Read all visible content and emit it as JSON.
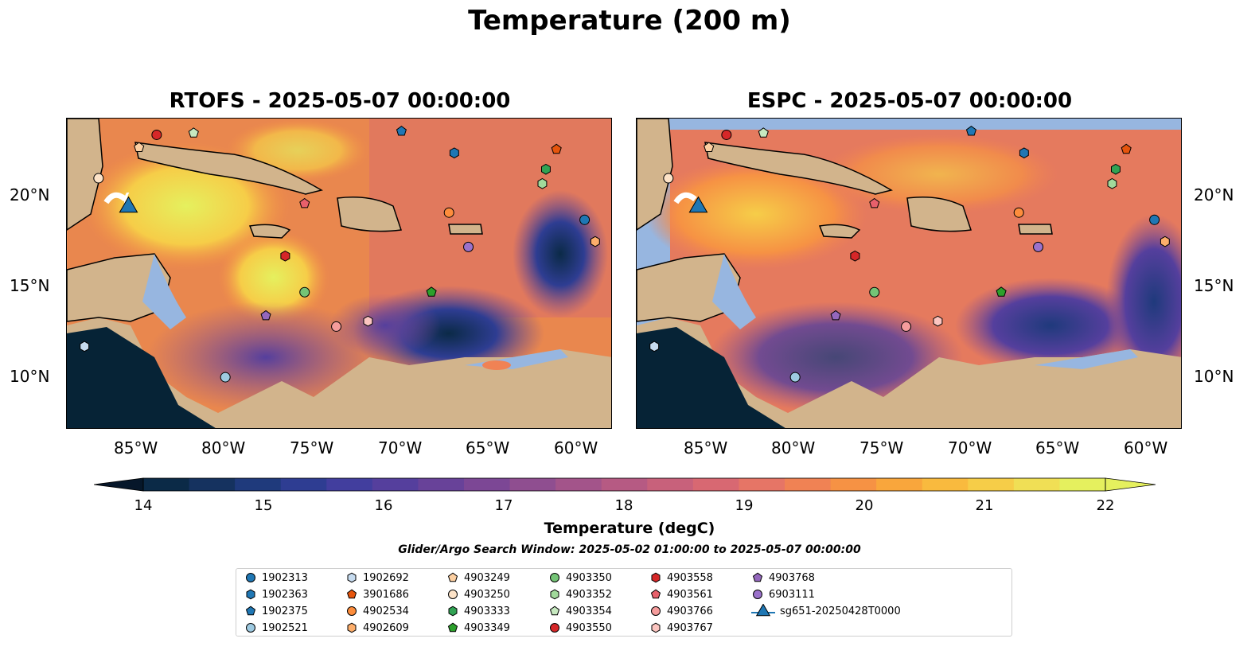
{
  "title": "Temperature (200 m)",
  "panels": [
    {
      "title": "RTOFS - 2025-05-07 00:00:00"
    },
    {
      "title": "ESPC - 2025-05-07 00:00:00"
    }
  ],
  "lon_labels": [
    "85°W",
    "80°W",
    "75°W",
    "70°W",
    "65°W",
    "60°W"
  ],
  "lat_labels": [
    "20°N",
    "15°N",
    "10°N"
  ],
  "colorbar": {
    "label": "Temperature (degC)",
    "ticks": [
      "14",
      "15",
      "16",
      "17",
      "18",
      "19",
      "20",
      "21",
      "22"
    ],
    "colors": [
      "#0b2a47",
      "#15325f",
      "#1f3a7c",
      "#2e3d92",
      "#423e9e",
      "#553f9d",
      "#684299",
      "#7c4795",
      "#8f4e90",
      "#a3548a",
      "#b65a83",
      "#c8617b",
      "#d86872",
      "#e67566",
      "#f08254",
      "#f69244",
      "#f9a63c",
      "#f9ba3e",
      "#f6cd48",
      "#f0df55",
      "#e5f05e"
    ]
  },
  "search_window": "Glider/Argo Search Window: 2025-05-02 01:00:00 to 2025-05-07 00:00:00",
  "legend": [
    {
      "label": "1902313",
      "color": "#1f77b4",
      "shape": "circle"
    },
    {
      "label": "1902363",
      "color": "#1f77b4",
      "shape": "hexagon"
    },
    {
      "label": "1902375",
      "color": "#1f77b4",
      "shape": "pentagon"
    },
    {
      "label": "1902521",
      "color": "#9ecae1",
      "shape": "circle"
    },
    {
      "label": "1902692",
      "color": "#c6dbef",
      "shape": "hexagon"
    },
    {
      "label": "3901686",
      "color": "#e6550d",
      "shape": "pentagon"
    },
    {
      "label": "4902534",
      "color": "#fd8d3c",
      "shape": "circle"
    },
    {
      "label": "4902609",
      "color": "#fdae6b",
      "shape": "hexagon"
    },
    {
      "label": "4903249",
      "color": "#fdd0a2",
      "shape": "pentagon"
    },
    {
      "label": "4903250",
      "color": "#fde3c8",
      "shape": "circle"
    },
    {
      "label": "4903333",
      "color": "#31a354",
      "shape": "hexagon"
    },
    {
      "label": "4903349",
      "color": "#2ca02c",
      "shape": "pentagon"
    },
    {
      "label": "4903350",
      "color": "#74c476",
      "shape": "circle"
    },
    {
      "label": "4903352",
      "color": "#a1d99b",
      "shape": "hexagon"
    },
    {
      "label": "4903354",
      "color": "#c7e9c0",
      "shape": "pentagon"
    },
    {
      "label": "4903550",
      "color": "#d62728",
      "shape": "circle"
    },
    {
      "label": "4903558",
      "color": "#d62728",
      "shape": "hexagon"
    },
    {
      "label": "4903561",
      "color": "#e7606b",
      "shape": "pentagon"
    },
    {
      "label": "4903766",
      "color": "#f59c9c",
      "shape": "circle"
    },
    {
      "label": "4903767",
      "color": "#fcc5c0",
      "shape": "hexagon"
    },
    {
      "label": "4903768",
      "color": "#9467bd",
      "shape": "pentagon"
    },
    {
      "label": "6903111",
      "color": "#9b72cb",
      "shape": "circle"
    },
    {
      "label": "sg651-20250428T0000",
      "color": "#1f77b4",
      "shape": "triangle"
    }
  ],
  "floats": [
    {
      "id": "1902313",
      "lon": -59.6,
      "lat": 18.7
    },
    {
      "id": "1902363",
      "lon": -67.0,
      "lat": 22.4
    },
    {
      "id": "1902375",
      "lon": -70.0,
      "lat": 23.6
    },
    {
      "id": "1902521",
      "lon": -80.0,
      "lat": 10.0
    },
    {
      "id": "1902692",
      "lon": -88.0,
      "lat": 11.7
    },
    {
      "id": "4902534",
      "lon": -67.3,
      "lat": 19.1
    },
    {
      "id": "4902609",
      "lon": -59.0,
      "lat": 17.5
    },
    {
      "id": "4903249",
      "lon": -84.9,
      "lat": 22.7
    },
    {
      "id": "4903250",
      "lon": -87.2,
      "lat": 21.0
    },
    {
      "id": "4903333",
      "lon": -61.8,
      "lat": 21.5
    },
    {
      "id": "4903349",
      "lon": -68.3,
      "lat": 14.7
    },
    {
      "id": "4903350",
      "lon": -75.5,
      "lat": 14.7
    },
    {
      "id": "4903352",
      "lon": -62.0,
      "lat": 20.7
    },
    {
      "id": "4903354",
      "lon": -81.8,
      "lat": 23.5
    },
    {
      "id": "4903550",
      "lon": -83.9,
      "lat": 23.4
    },
    {
      "id": "4903558",
      "lon": -76.6,
      "lat": 16.7
    },
    {
      "id": "4903561",
      "lon": -75.5,
      "lat": 19.6
    },
    {
      "id": "4903766",
      "lon": -73.7,
      "lat": 12.8
    },
    {
      "id": "4903767",
      "lon": -71.9,
      "lat": 13.1
    },
    {
      "id": "4903768",
      "lon": -77.7,
      "lat": 13.4
    },
    {
      "id": "6903111",
      "lon": -66.2,
      "lat": 17.2
    },
    {
      "id": "3901686",
      "lon": -61.2,
      "lat": 22.6
    }
  ],
  "glider": {
    "id": "sg651-20250428T0000",
    "lon": -85.5,
    "lat": 19.4
  }
}
